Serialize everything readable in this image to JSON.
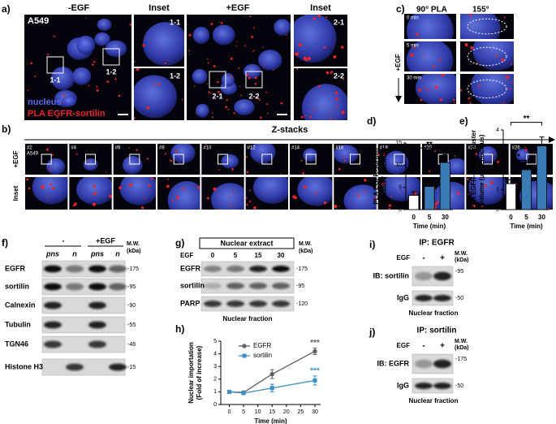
{
  "panels": {
    "a": {
      "label": "a)",
      "headers": [
        "-EGF",
        "Inset",
        "+EGF",
        "Inset"
      ],
      "cell_line": "A549",
      "regions": [
        "1-1",
        "1-2",
        "2-1",
        "2-2"
      ],
      "legend": [
        "nucleus",
        "PLA EGFR-sortilin"
      ]
    },
    "b": {
      "label": "b)",
      "title": "Z-stacks",
      "rows": [
        "+EGF",
        "Inset"
      ],
      "cell_line": "A549",
      "slices": [
        "#2",
        "#4",
        "#6",
        "#8",
        "#10",
        "#12",
        "#14",
        "#16",
        "#18",
        "#20",
        "#24",
        "#26"
      ]
    },
    "c": {
      "label": "c)",
      "views": [
        "90° PLA",
        "155°"
      ],
      "times": [
        "0 min",
        "5 min",
        "30 min"
      ],
      "condition": "+EGF"
    },
    "f": {
      "label": "f)",
      "groups": [
        "-",
        "+EGF"
      ],
      "lanes": [
        "pns",
        "n",
        "pns",
        "n"
      ],
      "mw_header": [
        "M.W.",
        "(kDa)"
      ],
      "rows": [
        {
          "name": "EGFR",
          "mw": "-175"
        },
        {
          "name": "sortilin",
          "mw": "-95"
        },
        {
          "name": "Calnexin",
          "mw": "-90"
        },
        {
          "name": "Tubulin",
          "mw": "-55"
        },
        {
          "name": "TGN46",
          "mw": "-46"
        },
        {
          "name": "Histone H3",
          "mw": "-15"
        }
      ]
    },
    "g": {
      "label": "g)",
      "title": "Nuclear extract",
      "treatment": "EGF",
      "lanes": [
        "0",
        "5",
        "15",
        "30"
      ],
      "mw_header": [
        "M.W.",
        "(kDa)"
      ],
      "rows": [
        {
          "name": "EGFR",
          "mw": "-175"
        },
        {
          "name": "sortilin",
          "mw": "-95"
        },
        {
          "name": "PARP",
          "mw": "-120"
        }
      ],
      "footer": "Nuclear fraction"
    },
    "i": {
      "label": "i)",
      "title": "IP: EGFR",
      "treatment": "EGF",
      "lanes": [
        "-",
        "+"
      ],
      "mw_header": [
        "M.W.",
        "(kDa)"
      ],
      "rows": [
        {
          "name": "IB: sortilin",
          "mw": "-95"
        },
        {
          "name": "IgG",
          "mw": "-50"
        }
      ],
      "footer": "Nuclear fraction"
    },
    "j": {
      "label": "j)",
      "title": "IP: sortilin",
      "treatment": "EGF",
      "lanes": [
        "-",
        "+"
      ],
      "mw_header": [
        "M.W.",
        "(kDa)"
      ],
      "rows": [
        {
          "name": "IB: EGFR",
          "mw": "-175"
        },
        {
          "name": "IgG",
          "mw": "-50"
        }
      ],
      "footer": "Nuclear fraction"
    }
  },
  "chart_data": [
    {
      "type": "bar",
      "label": "d)",
      "ylabel": [
        "PLA EGFR-sortilin",
        "(Cluster / nucleus)"
      ],
      "xlabel": "Time (min)",
      "categories": [
        "0",
        "5",
        "30"
      ],
      "values": [
        3.2,
        5.2,
        10.6
      ],
      "errors": [
        0.8,
        0.6,
        1.8
      ],
      "colors": [
        "#ffffff",
        "#3a7ab5",
        "#3a7ab5"
      ],
      "ylim": [
        0,
        15
      ],
      "yticks": [
        0,
        5,
        10,
        15
      ],
      "annotations": [
        "**"
      ]
    },
    {
      "type": "bar",
      "label": "e)",
      "ylabel": [
        "PLA EGFR-sortilin cluster",
        "volume (µm³ / nucleus)"
      ],
      "xlabel": "Time (min)",
      "categories": [
        "0",
        "5",
        "30"
      ],
      "values": [
        1.3,
        2.0,
        3.2
      ],
      "errors": [
        0.2,
        0.15,
        0.45
      ],
      "colors": [
        "#ffffff",
        "#3a7ab5",
        "#3a7ab5"
      ],
      "ylim": [
        0,
        4
      ],
      "yticks": [
        0,
        1,
        2,
        3,
        4
      ],
      "annotations": [
        "*",
        "**"
      ]
    },
    {
      "type": "line",
      "label": "h)",
      "ylabel": [
        "Nuclear importation",
        "(Fold of increase)"
      ],
      "xlabel": "Time (min)",
      "x": [
        0,
        5,
        15,
        30
      ],
      "series": [
        {
          "name": "EGFR",
          "color": "#606060",
          "marker": "circle",
          "values": [
            1,
            0.95,
            2.4,
            4.2
          ],
          "errors": [
            0.1,
            0.1,
            0.35,
            0.25
          ],
          "annotation": "***"
        },
        {
          "name": "sortilin",
          "color": "#3a8fc7",
          "marker": "square",
          "values": [
            1,
            0.9,
            1.3,
            1.9
          ],
          "errors": [
            0.08,
            0.1,
            0.3,
            0.35
          ],
          "annotation": "***"
        }
      ],
      "xlim": [
        -3,
        32
      ],
      "xticks": [
        0,
        5,
        10,
        15,
        20,
        25,
        30
      ],
      "ylim": [
        0,
        5
      ],
      "yticks": [
        0,
        1,
        2,
        3,
        4,
        5
      ]
    }
  ]
}
